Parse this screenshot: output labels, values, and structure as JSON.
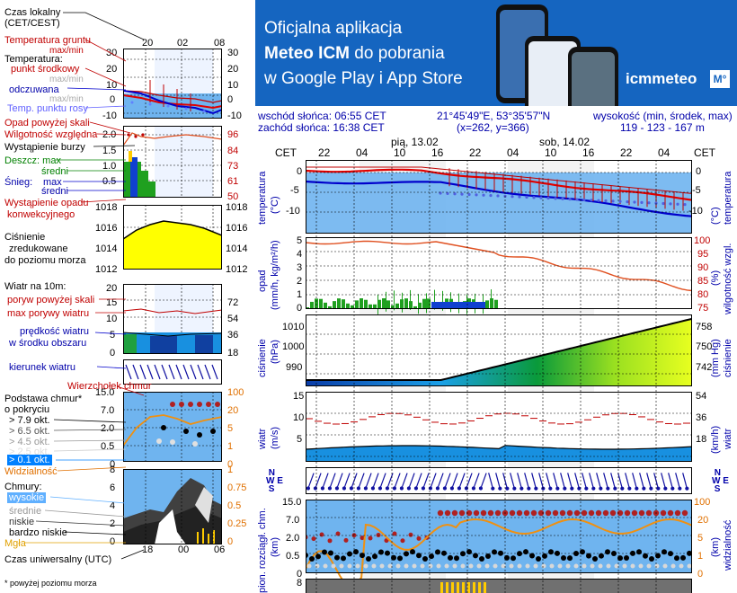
{
  "banner": {
    "line1": "Oficjalna aplikacja",
    "line2_bold": "Meteo ICM",
    "line2_rest": " do pobrania",
    "line3": "w Google Play i App Store",
    "logo_text": "icmmeteo",
    "logo_badge": "M°"
  },
  "info": {
    "sunrise": "wschód słońca: 06:55 CET",
    "sunset": "zachód słońca: 16:38 CET",
    "coords": "21°45'49\"E, 53°35'57\"N",
    "grid": "(x=262, y=366)",
    "height_label": "wysokość (min, środek, max)",
    "height_values": "119 - 123 - 167 m"
  },
  "legend": {
    "local_time": "Czas lokalny",
    "local_time_tz": "(CET/CEST)",
    "top_hours": [
      "20",
      "02",
      "08"
    ],
    "ground_temp": "Temperatura gruntu",
    "ground_temp_max": "max/min",
    "temperature": "Temperatura:",
    "center_point": "punkt środkowy",
    "center_maxmin": "max/min",
    "feels_like": "odczuwana",
    "feels_maxmin": "max/min",
    "dew_point": "Temp. punktu rosy",
    "precip_above_scale": "Opad powyżej skali",
    "rel_humidity": "Wilgotność względna",
    "storm": "Wystąpienie burzy",
    "rain_max": "Deszcz: max",
    "rain_mean": "średni",
    "snow_max": "max",
    "snow_label": "Śnieg:",
    "snow_mean": "średni",
    "precip_occ1": "Wystąpienie opadu",
    "precip_occ2": "konwekcyjnego",
    "pressure1": "Ciśnienie",
    "pressure2": "zredukowane",
    "pressure3": "do poziomu morza",
    "wind_at": "Wiatr na 10m:",
    "gusts_above": "poryw powyżej skali",
    "gust_max": "max porywy wiatru",
    "wind_speed1": "prędkość wiatru",
    "wind_speed2": "w środku obszaru",
    "wind_dir": "kierunek wiatru",
    "cloud_top": "Wierzchołek chmur",
    "cloud_base1": "Podstawa chmur*",
    "cloud_base2": "o pokryciu",
    "okt1": "> 7.9 okt.",
    "okt2": "> 6.5 okt.",
    "okt3": "> 4.5 okt.",
    "okt4": "> 2.5 okt.",
    "okt5": "> 0.1 okt.",
    "visibility": "Widzialność",
    "clouds": "Chmury:",
    "high": "wysokie",
    "mid": "średnie",
    "low": "niskie",
    "very_low": "bardzo niskie",
    "fog": "Mgła",
    "utc": "Czas uniwersalny (UTC)",
    "bottom_hours": [
      "18",
      "00",
      "06"
    ],
    "footnote": "* powyżej poziomu morza"
  },
  "legend_axes": {
    "temp_left": [
      "30",
      "20",
      "10",
      "0",
      "-10"
    ],
    "temp_right": [
      "30",
      "20",
      "10",
      "0",
      "-10"
    ],
    "precip_left": [
      "2.0",
      "1.5",
      "1.0",
      "0.5"
    ],
    "precip_right": [
      "96",
      "84",
      "73",
      "61",
      "50"
    ],
    "pressure_left": [
      "1018",
      "1016",
      "1014",
      "1012"
    ],
    "pressure_right": [
      "1018",
      "1016",
      "1014",
      "1012"
    ],
    "wind_left": [
      "20",
      "15",
      "10",
      "5",
      "0"
    ],
    "wind_right": [
      "72",
      "54",
      "36",
      "18",
      "0"
    ],
    "cloud_left": [
      "15.0",
      "7.0",
      "2.0",
      "0.5",
      "0"
    ],
    "cloud_right": [
      "100",
      "20",
      "5",
      "1",
      "0"
    ],
    "cover_left": [
      "8",
      "6",
      "4",
      "2",
      "0"
    ],
    "cover_right": [
      "1",
      "0.75",
      "0.5",
      "0.25",
      "0"
    ]
  },
  "main": {
    "cet_left": "CET",
    "cet_right": "CET",
    "day1": "pią, 13.02",
    "day2": "sob, 14.02",
    "hours": [
      "22",
      "04",
      "10",
      "16",
      "22",
      "04",
      "10",
      "16",
      "22",
      "04"
    ],
    "temp_label": "temperatura",
    "temp_unit": "(°C)",
    "temp_right_label": "temperatura",
    "temp_right_unit": "(°C)",
    "temp_ticks": [
      "0",
      "-5",
      "-10"
    ],
    "temp_ticks_right": [
      "0",
      "-5",
      "-10"
    ],
    "precip_label": "opad",
    "precip_unit": "(mm/h, kg/m²/h)",
    "hum_label": "wilgotność wzgl.",
    "hum_unit": "(%)",
    "precip_ticks": [
      "5",
      "4",
      "3",
      "2",
      "1",
      "0"
    ],
    "hum_ticks": [
      "100",
      "95",
      "90",
      "85",
      "80",
      "75"
    ],
    "press_label": "ciśnienie",
    "press_unit": "(hPa)",
    "press_right_label": "ciśnienie",
    "press_right_unit": "(mm Hg)",
    "press_ticks": [
      "1010",
      "1000",
      "990"
    ],
    "press_ticks_right": [
      "758",
      "750",
      "742"
    ],
    "wind_label": "wiatr",
    "wind_unit": "(m/s)",
    "wind_right_label": "wiatr",
    "wind_right_unit": "(km/h)",
    "wind_ticks": [
      "15",
      "10",
      "5"
    ],
    "wind_ticks_right": [
      "54",
      "36",
      "18"
    ],
    "cloud_label": "pion. rozciągł. chm.",
    "cloud_unit": "(km)",
    "vis_label": "widzialność",
    "vis_unit": "(km)",
    "cloud_ticks": [
      "15.0",
      "7.0",
      "2.0",
      "0.5",
      "0"
    ],
    "vis_ticks": [
      "100",
      "20",
      "5",
      "1",
      "0"
    ],
    "bottom_tick": "8"
  },
  "colors": {
    "banner": "#1565c0",
    "temp_red": "#e00000",
    "temp_blue": "#0000cc",
    "sky": "#6fb4ef",
    "pressure_yellow": "#ffff00",
    "rain_green": "#1fa01f"
  }
}
